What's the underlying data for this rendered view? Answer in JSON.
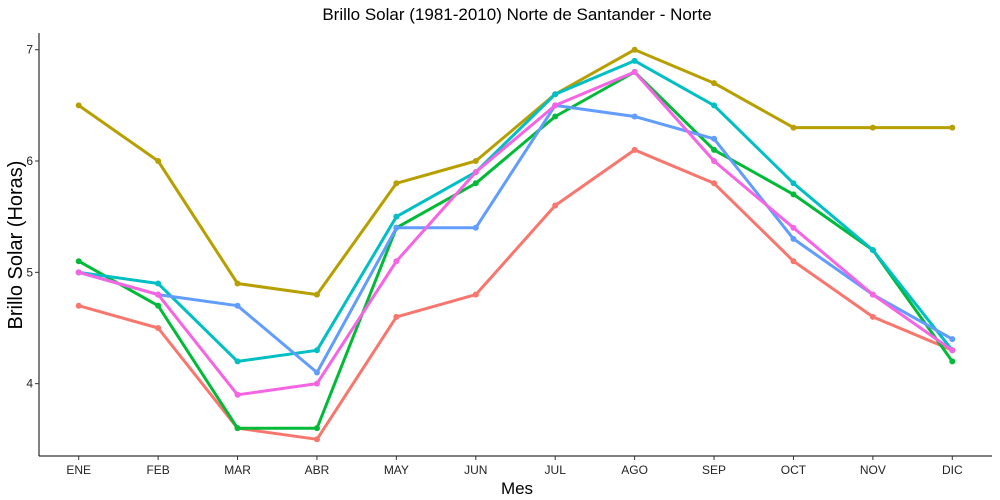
{
  "chart_data": {
    "type": "line",
    "title": "Brillo Solar (1981-2010)  Norte de Santander - Norte",
    "xlabel": "Mes",
    "ylabel": "Brillo Solar (Horas)",
    "categories": [
      "ENE",
      "FEB",
      "MAR",
      "ABR",
      "MAY",
      "JUN",
      "JUL",
      "AGO",
      "SEP",
      "OCT",
      "NOV",
      "DIC"
    ],
    "ylim": [
      3.35,
      7.15
    ],
    "yticks": [
      4,
      5,
      6,
      7
    ],
    "grid": false,
    "legend": "none",
    "series": [
      {
        "color": "#F8766D",
        "values": [
          4.7,
          4.5,
          3.6,
          3.5,
          4.6,
          4.8,
          5.6,
          6.1,
          5.8,
          5.1,
          4.6,
          4.3
        ]
      },
      {
        "color": "#B79F00",
        "values": [
          6.5,
          6.0,
          4.9,
          4.8,
          5.8,
          6.0,
          6.6,
          7.0,
          6.7,
          6.3,
          6.3,
          6.3
        ]
      },
      {
        "color": "#00BA38",
        "values": [
          5.1,
          4.7,
          3.6,
          3.6,
          5.4,
          5.8,
          6.4,
          6.8,
          6.1,
          5.7,
          5.2,
          4.2
        ]
      },
      {
        "color": "#00BFC4",
        "values": [
          5.0,
          4.9,
          4.2,
          4.3,
          5.5,
          5.9,
          6.6,
          6.9,
          6.5,
          5.8,
          5.2,
          4.3
        ]
      },
      {
        "color": "#619CFF",
        "values": [
          5.0,
          4.8,
          4.7,
          4.1,
          5.4,
          5.4,
          6.5,
          6.4,
          6.2,
          5.3,
          4.8,
          4.4
        ]
      },
      {
        "color": "#F564E3",
        "values": [
          5.0,
          4.8,
          3.9,
          4.0,
          5.1,
          5.9,
          6.5,
          6.8,
          6.0,
          5.4,
          4.8,
          4.3
        ]
      }
    ]
  }
}
